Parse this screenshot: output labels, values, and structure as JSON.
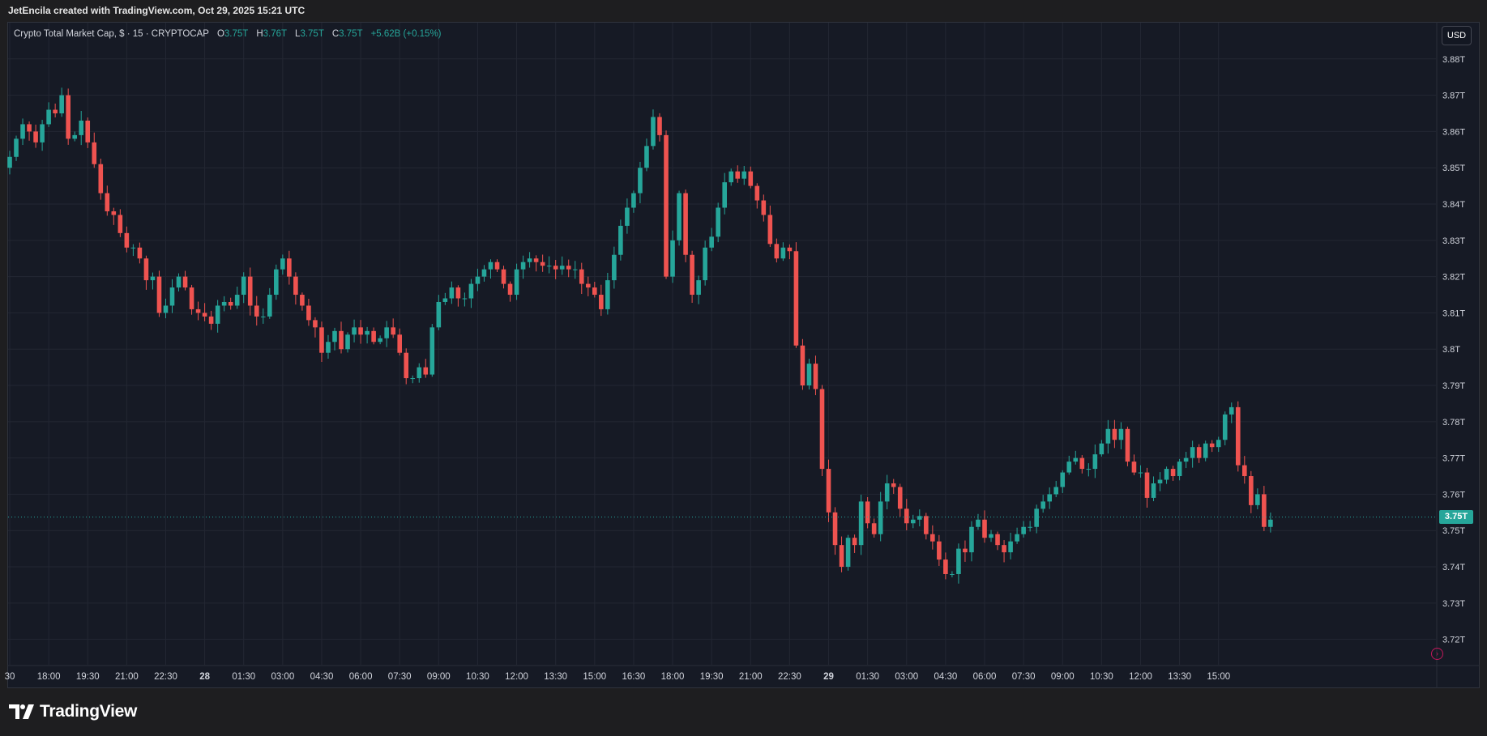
{
  "banner": {
    "text": "JetEncila created with TradingView.com, Oct 29, 2025 15:21 UTC"
  },
  "legend": {
    "symbol_text": "Crypto Total Market Cap, $ · 15 · CRYPTOCAP",
    "o_label": "O",
    "o_value": "3.75T",
    "h_label": "H",
    "h_value": "3.76T",
    "l_label": "L",
    "l_value": "3.75T",
    "c_label": "C",
    "c_value": "3.75T",
    "change": "+5.62B (+0.15%)"
  },
  "currency": "USD",
  "last_price_label": "3.75T",
  "footer": {
    "brand": "TradingView"
  },
  "colors": {
    "up": "#26a69a",
    "down": "#ef5350",
    "background": "#161a25",
    "grid": "#232733",
    "axis_text": "#d1d4dc"
  },
  "chart_data": {
    "type": "candlestick",
    "interval": "15",
    "y_unit": "T",
    "ylim": [
      3.713,
      3.89
    ],
    "last_price": 3.7537,
    "y_ticks": [
      "3.72T",
      "3.73T",
      "3.74T",
      "3.75T",
      "3.76T",
      "3.77T",
      "3.78T",
      "3.79T",
      "3.8T",
      "3.81T",
      "3.82T",
      "3.83T",
      "3.84T",
      "3.85T",
      "3.86T",
      "3.87T",
      "3.88T"
    ],
    "y_tick_values": [
      3.72,
      3.73,
      3.74,
      3.75,
      3.76,
      3.77,
      3.78,
      3.79,
      3.8,
      3.81,
      3.82,
      3.83,
      3.84,
      3.85,
      3.86,
      3.87,
      3.88
    ],
    "x_ticks": [
      {
        "label": "30",
        "bar": 0,
        "bold": false
      },
      {
        "label": "18:00",
        "bar": 6,
        "bold": false
      },
      {
        "label": "19:30",
        "bar": 12,
        "bold": false
      },
      {
        "label": "21:00",
        "bar": 18,
        "bold": false
      },
      {
        "label": "22:30",
        "bar": 24,
        "bold": false
      },
      {
        "label": "28",
        "bar": 30,
        "bold": true
      },
      {
        "label": "01:30",
        "bar": 36,
        "bold": false
      },
      {
        "label": "03:00",
        "bar": 42,
        "bold": false
      },
      {
        "label": "04:30",
        "bar": 48,
        "bold": false
      },
      {
        "label": "06:00",
        "bar": 54,
        "bold": false
      },
      {
        "label": "07:30",
        "bar": 60,
        "bold": false
      },
      {
        "label": "09:00",
        "bar": 66,
        "bold": false
      },
      {
        "label": "10:30",
        "bar": 72,
        "bold": false
      },
      {
        "label": "12:00",
        "bar": 78,
        "bold": false
      },
      {
        "label": "13:30",
        "bar": 84,
        "bold": false
      },
      {
        "label": "15:00",
        "bar": 90,
        "bold": false
      },
      {
        "label": "16:30",
        "bar": 96,
        "bold": false
      },
      {
        "label": "18:00",
        "bar": 102,
        "bold": false
      },
      {
        "label": "19:30",
        "bar": 108,
        "bold": false
      },
      {
        "label": "21:00",
        "bar": 114,
        "bold": false
      },
      {
        "label": "22:30",
        "bar": 120,
        "bold": false
      },
      {
        "label": "29",
        "bar": 126,
        "bold": true
      },
      {
        "label": "01:30",
        "bar": 132,
        "bold": false
      },
      {
        "label": "03:00",
        "bar": 138,
        "bold": false
      },
      {
        "label": "04:30",
        "bar": 144,
        "bold": false
      },
      {
        "label": "06:00",
        "bar": 150,
        "bold": false
      },
      {
        "label": "07:30",
        "bar": 156,
        "bold": false
      },
      {
        "label": "09:00",
        "bar": 162,
        "bold": false
      },
      {
        "label": "10:30",
        "bar": 168,
        "bold": false
      },
      {
        "label": "12:00",
        "bar": 174,
        "bold": false
      },
      {
        "label": "13:30",
        "bar": 180,
        "bold": false
      },
      {
        "label": "15:00",
        "bar": 186,
        "bold": false
      }
    ],
    "close_series": [
      3.853,
      3.858,
      3.862,
      3.86,
      3.857,
      3.862,
      3.866,
      3.865,
      3.87,
      3.858,
      3.859,
      3.863,
      3.857,
      3.851,
      3.843,
      3.838,
      3.837,
      3.832,
      3.828,
      3.828,
      3.825,
      3.819,
      3.82,
      3.81,
      3.812,
      3.817,
      3.82,
      3.817,
      3.811,
      3.81,
      3.809,
      3.807,
      3.812,
      3.813,
      3.812,
      3.815,
      3.82,
      3.812,
      3.809,
      3.809,
      3.815,
      3.822,
      3.825,
      3.82,
      3.815,
      3.812,
      3.808,
      3.806,
      3.799,
      3.802,
      3.805,
      3.8,
      3.804,
      3.806,
      3.804,
      3.805,
      3.802,
      3.803,
      3.806,
      3.804,
      3.799,
      3.792,
      3.792,
      3.795,
      3.793,
      3.806,
      3.813,
      3.814,
      3.817,
      3.814,
      3.814,
      3.818,
      3.82,
      3.822,
      3.824,
      3.822,
      3.818,
      3.815,
      3.822,
      3.824,
      3.825,
      3.824,
      3.823,
      3.823,
      3.822,
      3.823,
      3.822,
      3.822,
      3.818,
      3.817,
      3.815,
      3.811,
      3.819,
      3.826,
      3.834,
      3.839,
      3.843,
      3.85,
      3.856,
      3.864,
      3.859,
      3.82,
      3.83,
      3.843,
      3.826,
      3.815,
      3.819,
      3.828,
      3.831,
      3.839,
      3.846,
      3.849,
      3.847,
      3.849,
      3.845,
      3.841,
      3.837,
      3.829,
      3.825,
      3.828,
      3.827,
      3.801,
      3.79,
      3.796,
      3.789,
      3.767,
      3.755,
      3.746,
      3.74,
      3.748,
      3.746,
      3.758,
      3.752,
      3.749,
      3.758,
      3.763,
      3.762,
      3.756,
      3.752,
      3.753,
      3.754,
      3.749,
      3.747,
      3.742,
      3.738,
      3.738,
      3.745,
      3.744,
      3.751,
      3.753,
      3.748,
      3.749,
      3.746,
      3.744,
      3.747,
      3.749,
      3.751,
      3.751,
      3.756,
      3.758,
      3.76,
      3.762,
      3.766,
      3.769,
      3.77,
      3.767,
      3.767,
      3.771,
      3.774,
      3.778,
      3.775,
      3.778,
      3.769,
      3.766,
      3.766,
      3.759,
      3.763,
      3.764,
      3.767,
      3.765,
      3.769,
      3.77,
      3.773,
      3.77,
      3.774,
      3.773,
      3.775,
      3.782,
      3.784,
      3.768,
      3.765,
      3.757,
      3.76,
      3.751,
      3.753
    ]
  }
}
